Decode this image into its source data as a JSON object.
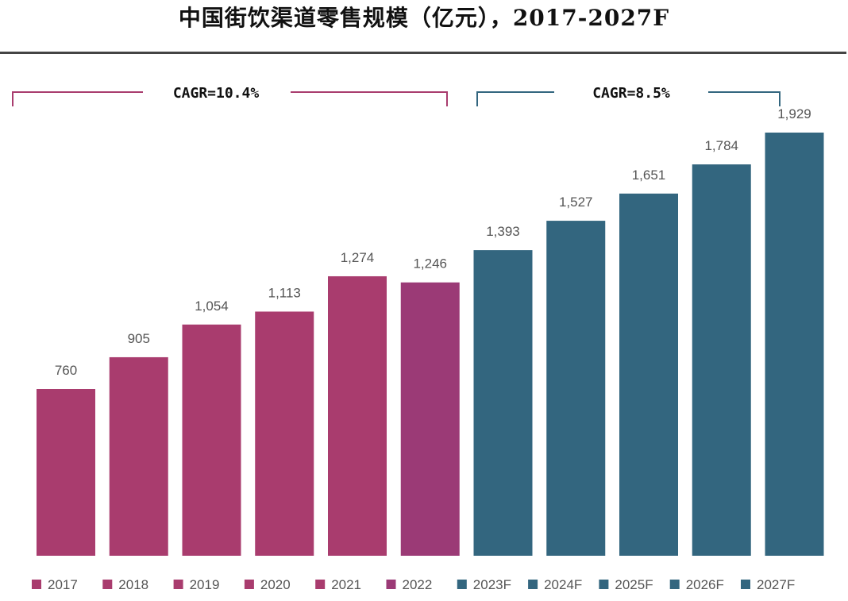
{
  "title": "中国街饮渠道零售规模（亿元），2017-2027F",
  "chart_data": {
    "type": "bar",
    "categories": [
      "2017",
      "2018",
      "2019",
      "2020",
      "2021",
      "2022",
      "2023F",
      "2024F",
      "2025F",
      "2026F",
      "2027F"
    ],
    "values": [
      760,
      905,
      1054,
      1113,
      1274,
      1246,
      1393,
      1527,
      1651,
      1784,
      1929
    ],
    "value_labels": [
      "760",
      "905",
      "1,054",
      "1,113",
      "1,274",
      "1,246",
      "1,393",
      "1,527",
      "1,651",
      "1,784",
      "1,929"
    ],
    "colors": [
      "#a93c6e",
      "#a93c6e",
      "#a93c6e",
      "#a93c6e",
      "#a93c6e",
      "#9b3a76",
      "#33667f",
      "#33667f",
      "#33667f",
      "#33667f",
      "#33667f"
    ],
    "ylim": [
      0,
      1929
    ],
    "grid": false,
    "legend_position": "bottom",
    "annotations": [
      {
        "text": "CAGR=10.4%",
        "from": "2017",
        "to": "2022",
        "color": "#a93c6e"
      },
      {
        "text": "CAGR=8.5%",
        "from": "2023F",
        "to": "2027F",
        "color": "#33667f"
      }
    ]
  }
}
